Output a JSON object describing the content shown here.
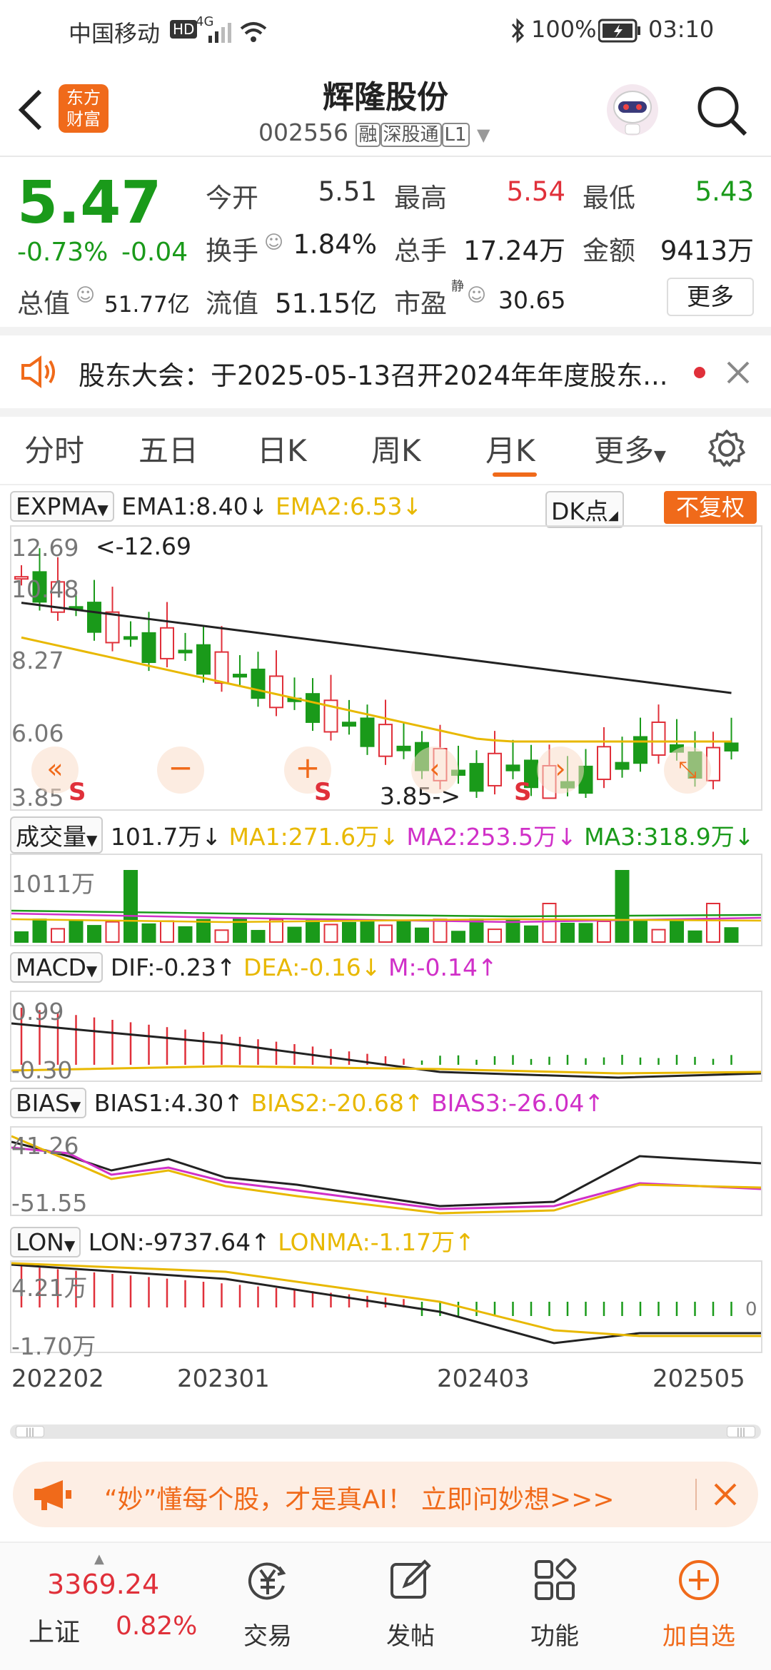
{
  "status_bar": {
    "carrier": "中国移动",
    "hd": "HD",
    "network": "4G",
    "battery": "100%",
    "time": "03:10"
  },
  "header": {
    "title": "辉隆股份",
    "code": "002556",
    "tags": [
      "融",
      "深股通",
      "L1"
    ],
    "logo_line1": "东方",
    "logo_line2": "财富"
  },
  "quote": {
    "price": "5.47",
    "change_pct": "-0.73%",
    "change": "-0.04",
    "open_label": "今开",
    "open": "5.51",
    "high_label": "最高",
    "high": "5.54",
    "low_label": "最低",
    "low": "5.43",
    "turnover_label": "换手",
    "turnover": "1.84%",
    "volume_label": "总手",
    "volume": "17.24万",
    "amount_label": "金额",
    "amount": "9413万",
    "mcap_label": "总值",
    "mcap": "51.77亿",
    "float_label": "流值",
    "float_cap": "51.15亿",
    "pe_label": "市盈",
    "pe_sup": "静",
    "pe": "30.65",
    "more": "更多"
  },
  "notice": {
    "text": "股东大会：于2025-05-13召开2024年年度股东..."
  },
  "tabs": [
    "分时",
    "五日",
    "日K",
    "周K",
    "月K",
    "更多"
  ],
  "active_tab": 4,
  "main_chart": {
    "indicator": "EXPMA",
    "ema1": "EMA1:8.40",
    "ema2": "EMA2:6.53",
    "dk": "DK点",
    "fq": "不复权",
    "y_labels": [
      "12.69",
      "10.48",
      "8.27",
      "6.06",
      "3.85"
    ],
    "max_note": "<-12.69",
    "min_note": "3.85->",
    "s_mark": "S"
  },
  "volume_panel": {
    "label": "成交量",
    "value": "101.7万",
    "ma1": "MA1:271.6万",
    "ma2": "MA2:253.5万",
    "ma3": "MA3:318.9万",
    "y_label": "1011万"
  },
  "macd_panel": {
    "label": "MACD",
    "dif": "DIF:-0.23",
    "dea": "DEA:-0.16",
    "m": "M:-0.14",
    "y_top": "0.99",
    "y_bottom": "-0.30"
  },
  "bias_panel": {
    "label": "BIAS",
    "bias1": "BIAS1:4.30",
    "bias2": "BIAS2:-20.68",
    "bias3": "BIAS3:-26.04",
    "y_top": "41.26",
    "y_bottom": "-51.55"
  },
  "lon_panel": {
    "label": "LON",
    "lon": "LON:-9737.64",
    "lonma": "LONMA:-1.17万",
    "y_top": "4.21万",
    "y_bottom": "-1.70万",
    "zero": "0"
  },
  "dates": [
    "202202",
    "202301",
    "202403",
    "202505"
  ],
  "ad": {
    "text": "“妙”懂每个股，才是真AI！ 立即问妙想>>>"
  },
  "bottom_nav": {
    "index_value": "3369.24",
    "index_name": "上证",
    "index_change": "0.82%",
    "items": [
      "交易",
      "发帖",
      "功能",
      "加自选"
    ]
  },
  "colors": {
    "up": "#e0303a",
    "down": "#1a9a1a",
    "accent": "#f06a1a",
    "ema1": "#222222",
    "ema2": "#e8b800",
    "ma2": "#d030c8"
  }
}
